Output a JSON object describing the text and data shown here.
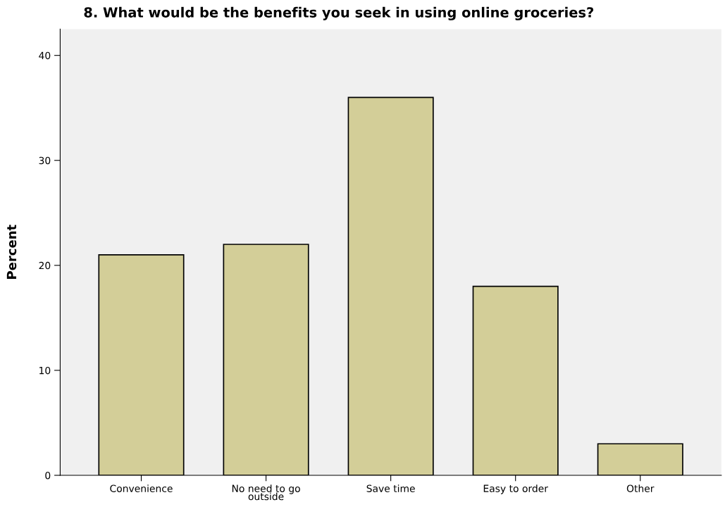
{
  "chart_data": {
    "type": "bar",
    "title": "8. What would be the benefits you seek in using online groceries?",
    "ylabel": "Percent",
    "categories": [
      "Convenience",
      "No need to go\noutside",
      "Save time",
      "Easy to order",
      "Other"
    ],
    "values": [
      21,
      22,
      36,
      18,
      3
    ],
    "color": "#d3ce98",
    "ylim": [
      0,
      42.5
    ],
    "yticks": [
      0,
      10,
      20,
      30,
      40
    ],
    "grid": false
  }
}
